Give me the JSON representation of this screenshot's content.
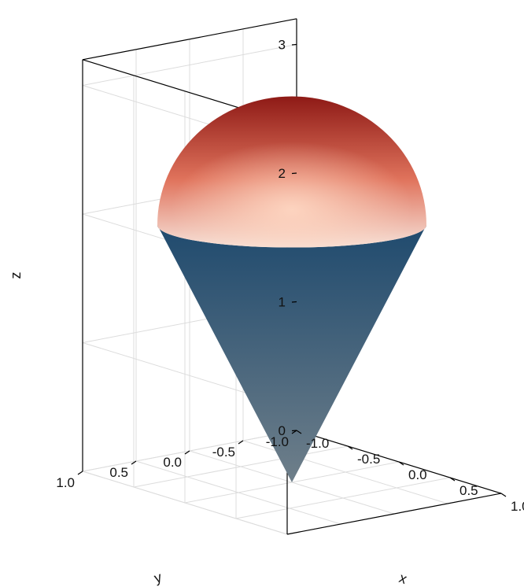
{
  "chart_data": {
    "type": "surface3d",
    "title": "",
    "xlabel": "x",
    "ylabel": "y",
    "zlabel": "z",
    "xlim": [
      -1.0,
      1.0
    ],
    "ylim": [
      -1.0,
      1.0
    ],
    "zlim": [
      0,
      3
    ],
    "xticks": [
      "-1.0",
      "-0.5",
      "0.0",
      "0.5",
      "1.0"
    ],
    "yticks": [
      "-1.0",
      "-0.5",
      "0.0",
      "0.5",
      "1.0"
    ],
    "zticks": [
      "0",
      "1",
      "2",
      "3"
    ],
    "grid": true,
    "surfaces": [
      {
        "shape": "cone",
        "apex_z": 0,
        "base_z": 2,
        "radius": 1,
        "color_top": "#1f4a6e",
        "color_bottom": "#6f7f8a"
      },
      {
        "shape": "hemisphere",
        "center_z": 2,
        "radius": 1,
        "color_top": "#8e1a16",
        "color_bottom": "#f6e1d8",
        "highlight": "#ffd9c4"
      }
    ]
  }
}
